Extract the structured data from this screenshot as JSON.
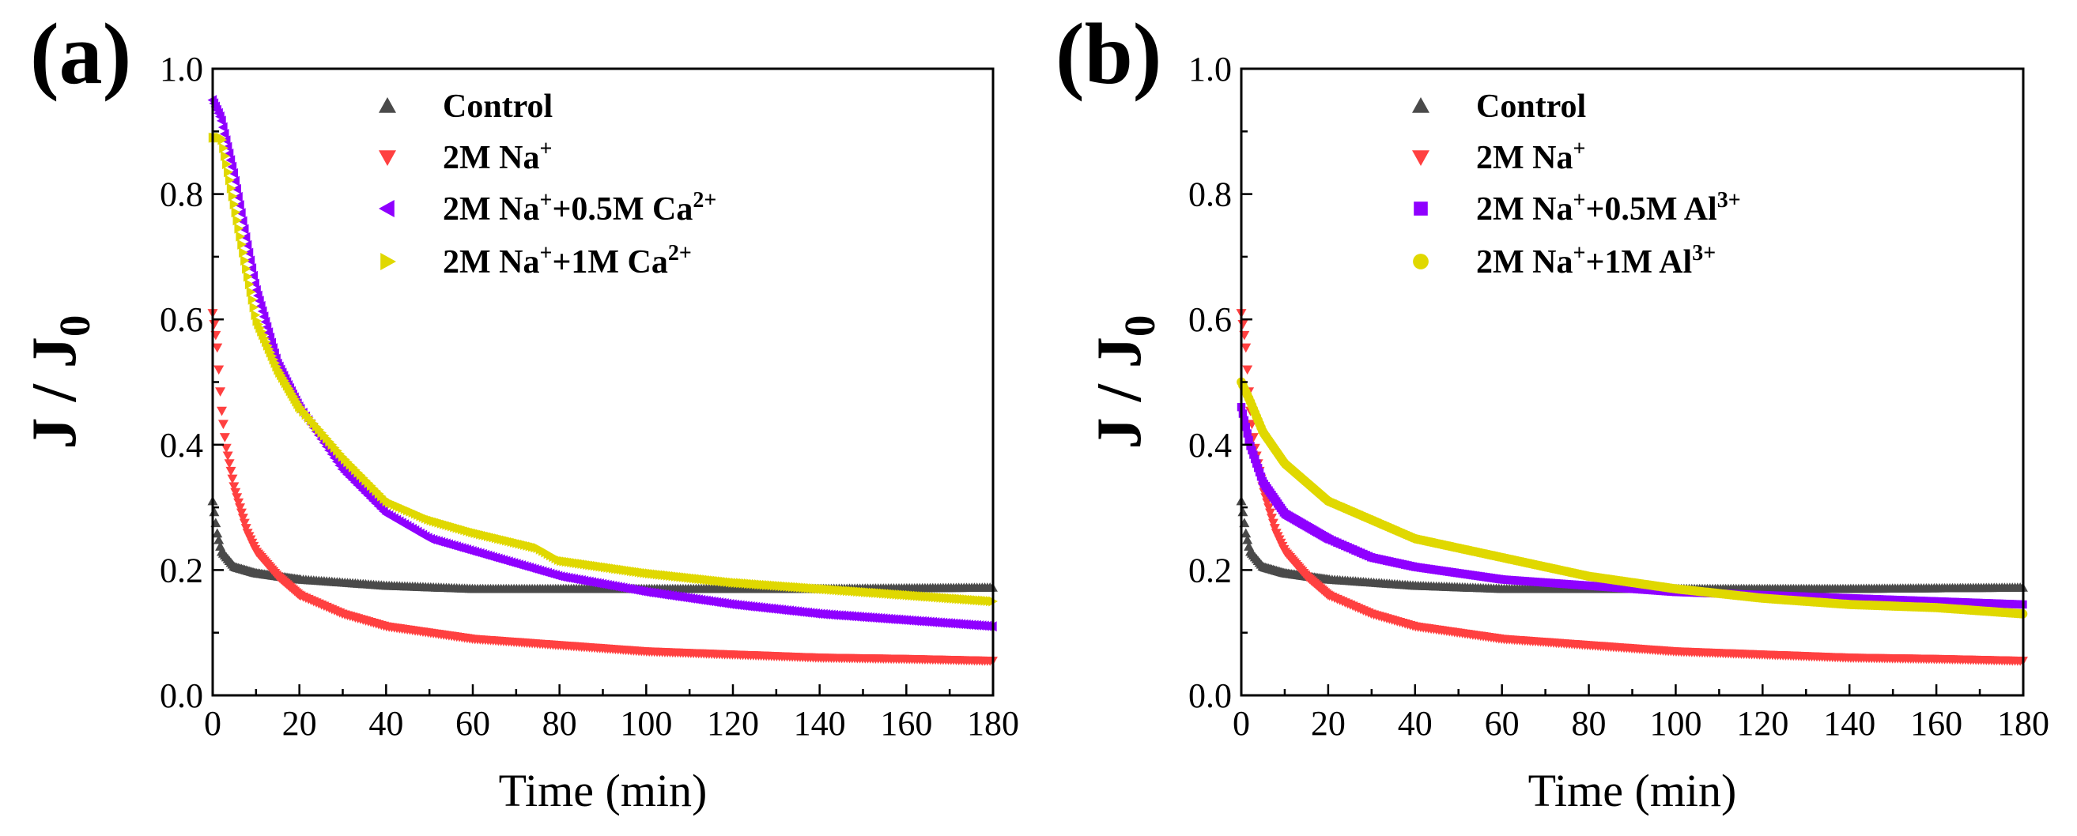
{
  "chart_data": [
    {
      "type": "scatter",
      "panel_label": "(a)",
      "xlabel": "Time (min)",
      "ylabel": "J / J",
      "ylabel_sub": "0",
      "xlim": [
        0,
        180
      ],
      "ylim": [
        0,
        1.0
      ],
      "xticks": [
        "0",
        "20",
        "40",
        "60",
        "80",
        "100",
        "120",
        "140",
        "160",
        "180"
      ],
      "yticks": [
        "0.0",
        "0.2",
        "0.4",
        "0.6",
        "0.8",
        "1.0"
      ],
      "legend_position": "top-center",
      "series": [
        {
          "name": "Control",
          "legend": {
            "base": "Control"
          },
          "marker": "triangle-up",
          "color": "#4a4a4a",
          "x": [
            0,
            1,
            2,
            5,
            10,
            20,
            40,
            60,
            100,
            140,
            180
          ],
          "y": [
            0.31,
            0.26,
            0.23,
            0.205,
            0.195,
            0.185,
            0.175,
            0.17,
            0.17,
            0.17,
            0.172
          ]
        },
        {
          "name": "2M Na+",
          "legend": {
            "base": "2M Na",
            "sup1": "+"
          },
          "marker": "triangle-down",
          "color": "#ff4040",
          "x": [
            0,
            1,
            2,
            3,
            5,
            8,
            10,
            15,
            20,
            30,
            40,
            60,
            80,
            100,
            120,
            140,
            160,
            180
          ],
          "y": [
            0.61,
            0.56,
            0.46,
            0.4,
            0.33,
            0.26,
            0.23,
            0.19,
            0.16,
            0.13,
            0.11,
            0.09,
            0.08,
            0.07,
            0.065,
            0.06,
            0.058,
            0.055
          ]
        },
        {
          "name": "2M Na+ +0.5M Ca2+",
          "legend": {
            "base": "2M Na",
            "sup1": "+",
            "mid": "+0.5M Ca",
            "sup2": "2+"
          },
          "marker": "triangle-left",
          "color": "#8f00ff",
          "x": [
            0,
            2,
            5,
            8,
            10,
            15,
            20,
            30,
            40,
            50,
            60,
            80,
            100,
            120,
            140,
            160,
            180
          ],
          "y": [
            0.95,
            0.92,
            0.83,
            0.72,
            0.65,
            0.53,
            0.46,
            0.36,
            0.29,
            0.25,
            0.23,
            0.19,
            0.165,
            0.145,
            0.13,
            0.12,
            0.11
          ]
        },
        {
          "name": "2M Na+ +1M Ca2+",
          "legend": {
            "base": "2M Na",
            "sup1": "+",
            "mid": "+1M Ca",
            "sup2": "2+"
          },
          "marker": "triangle-right",
          "color": "#e0d800",
          "x": [
            0,
            2,
            5,
            8,
            10,
            15,
            20,
            30,
            40,
            50,
            60,
            75,
            80,
            100,
            120,
            140,
            160,
            180
          ],
          "y": [
            0.89,
            0.89,
            0.78,
            0.67,
            0.6,
            0.52,
            0.46,
            0.38,
            0.31,
            0.28,
            0.26,
            0.235,
            0.215,
            0.195,
            0.18,
            0.17,
            0.16,
            0.15
          ]
        }
      ]
    },
    {
      "type": "scatter",
      "panel_label": "(b)",
      "xlabel": "Time (min)",
      "ylabel": "J / J",
      "ylabel_sub": "0",
      "xlim": [
        0,
        180
      ],
      "ylim": [
        0,
        1.0
      ],
      "xticks": [
        "0",
        "20",
        "40",
        "60",
        "80",
        "100",
        "120",
        "140",
        "160",
        "180"
      ],
      "yticks": [
        "0.0",
        "0.2",
        "0.4",
        "0.6",
        "0.8",
        "1.0"
      ],
      "legend_position": "top-center",
      "series": [
        {
          "name": "Control",
          "legend": {
            "base": "Control"
          },
          "marker": "triangle-up",
          "color": "#4a4a4a",
          "x": [
            0,
            1,
            2,
            5,
            10,
            20,
            40,
            60,
            100,
            140,
            180
          ],
          "y": [
            0.31,
            0.26,
            0.23,
            0.205,
            0.195,
            0.185,
            0.175,
            0.17,
            0.17,
            0.17,
            0.172
          ]
        },
        {
          "name": "2M Na+",
          "legend": {
            "base": "2M Na",
            "sup1": "+"
          },
          "marker": "triangle-down",
          "color": "#ff4040",
          "x": [
            0,
            1,
            2,
            3,
            5,
            8,
            10,
            15,
            20,
            30,
            40,
            60,
            80,
            100,
            120,
            140,
            160,
            180
          ],
          "y": [
            0.61,
            0.56,
            0.46,
            0.4,
            0.33,
            0.26,
            0.23,
            0.19,
            0.16,
            0.13,
            0.11,
            0.09,
            0.08,
            0.07,
            0.065,
            0.06,
            0.058,
            0.055
          ]
        },
        {
          "name": "2M Na+ +0.5M Al3+",
          "legend": {
            "base": "2M Na",
            "sup1": "+",
            "mid": "+0.5M Al",
            "sup2": "3+"
          },
          "marker": "square",
          "color": "#8f00ff",
          "x": [
            0,
            2,
            5,
            10,
            20,
            30,
            40,
            60,
            80,
            100,
            120,
            140,
            160,
            180
          ],
          "y": [
            0.46,
            0.4,
            0.34,
            0.29,
            0.25,
            0.22,
            0.205,
            0.185,
            0.175,
            0.165,
            0.16,
            0.155,
            0.15,
            0.145
          ]
        },
        {
          "name": "2M Na+ +1M Al3+",
          "legend": {
            "base": "2M Na",
            "sup1": "+",
            "mid": "+1M Al",
            "sup2": "3+"
          },
          "marker": "circle",
          "color": "#e0d800",
          "x": [
            0,
            2,
            5,
            10,
            20,
            30,
            40,
            60,
            80,
            100,
            120,
            140,
            160,
            180
          ],
          "y": [
            0.5,
            0.47,
            0.42,
            0.37,
            0.31,
            0.28,
            0.25,
            0.22,
            0.19,
            0.17,
            0.155,
            0.145,
            0.14,
            0.13
          ]
        }
      ]
    }
  ]
}
